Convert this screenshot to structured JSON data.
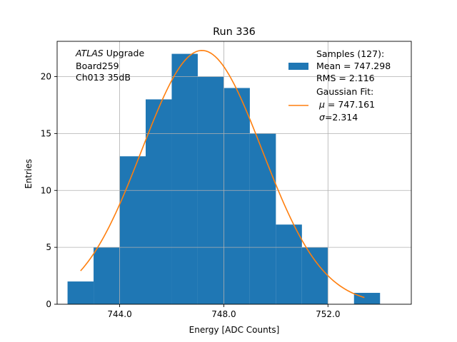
{
  "chart_data": {
    "type": "histogram",
    "title": "Run 336",
    "xlabel": "Energy [ADC Counts]",
    "ylabel": "Entries",
    "xlim": [
      741.6,
      755.2
    ],
    "ylim": [
      0,
      23.1
    ],
    "grid": true,
    "x_ticks": [
      744.0,
      748.0,
      752.0
    ],
    "x_tick_labels": [
      "744.0",
      "748.0",
      "752.0"
    ],
    "y_ticks": [
      0,
      5,
      10,
      15,
      20
    ],
    "y_tick_labels": [
      "0",
      "5",
      "10",
      "15",
      "20"
    ],
    "bin_edges": [
      742.0,
      743.0,
      744.0,
      745.0,
      746.0,
      747.0,
      748.0,
      749.0,
      750.0,
      751.0,
      752.0,
      753.0,
      754.0
    ],
    "counts": [
      2,
      5,
      13,
      18,
      22,
      20,
      19,
      15,
      7,
      5,
      0,
      1
    ],
    "bar_color": "#1f77b4",
    "fit": {
      "type": "gaussian",
      "amplitude": 22.3,
      "mu": 747.161,
      "sigma": 2.314,
      "x_range": [
        742.5,
        753.4
      ],
      "color": "#ff7f0e"
    },
    "annotation": {
      "italic": "ATLAS",
      "rest": " Upgrade",
      "line2": " Board259",
      "line3": " Ch013 35dB"
    },
    "legend": {
      "position": "top-right",
      "samples_title": "Samples (127):",
      "samples_mean": " Mean = 747.298",
      "samples_rms": " RMS = 2.116",
      "fit_title": "Gaussian Fit:",
      "fit_mu_symbol": "μ",
      "fit_mu_value": " = 747.161",
      "fit_sigma_symbol": "σ",
      "fit_sigma_value": "=2.314"
    }
  }
}
